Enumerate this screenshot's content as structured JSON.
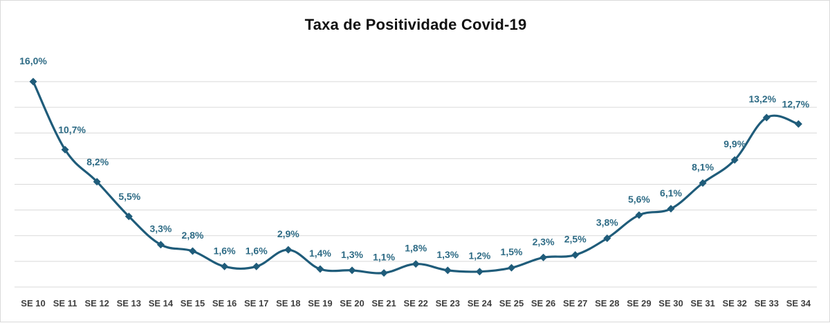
{
  "chart_data": {
    "type": "line",
    "title": "Taxa de Positividade Covid-19",
    "xlabel": "",
    "ylabel": "",
    "categories": [
      "SE 10",
      "SE 11",
      "SE 12",
      "SE 13",
      "SE 14",
      "SE 15",
      "SE 16",
      "SE 17",
      "SE 18",
      "SE 19",
      "SE 20",
      "SE 21",
      "SE 22",
      "SE 23",
      "SE 24",
      "SE 25",
      "SE 26",
      "SE 27",
      "SE 28",
      "SE 29",
      "SE 30",
      "SE 31",
      "SE 32",
      "SE 33",
      "SE 34"
    ],
    "series": [
      {
        "values": [
          16.0,
          10.7,
          8.2,
          5.5,
          3.3,
          2.8,
          1.6,
          1.6,
          2.9,
          1.4,
          1.3,
          1.1,
          1.8,
          1.3,
          1.2,
          1.5,
          2.3,
          2.5,
          3.8,
          5.6,
          6.1,
          8.1,
          9.9,
          13.2,
          12.7
        ],
        "labels": [
          "16,0%",
          "10,7%",
          "8,2%",
          "5,5%",
          "3,3%",
          "2,8%",
          "1,6%",
          "1,6%",
          "2,9%",
          "1,4%",
          "1,3%",
          "1,1%",
          "1,8%",
          "1,3%",
          "1,2%",
          "1,5%",
          "2,3%",
          "2,5%",
          "3,8%",
          "5,6%",
          "6,1%",
          "8,1%",
          "9,9%",
          "13,2%",
          "12,7%"
        ]
      }
    ],
    "ylim": [
      0,
      16
    ],
    "grid": true,
    "legend": "none",
    "colors": {
      "line": "#1f5c7a",
      "label": "#2e6b85"
    }
  }
}
